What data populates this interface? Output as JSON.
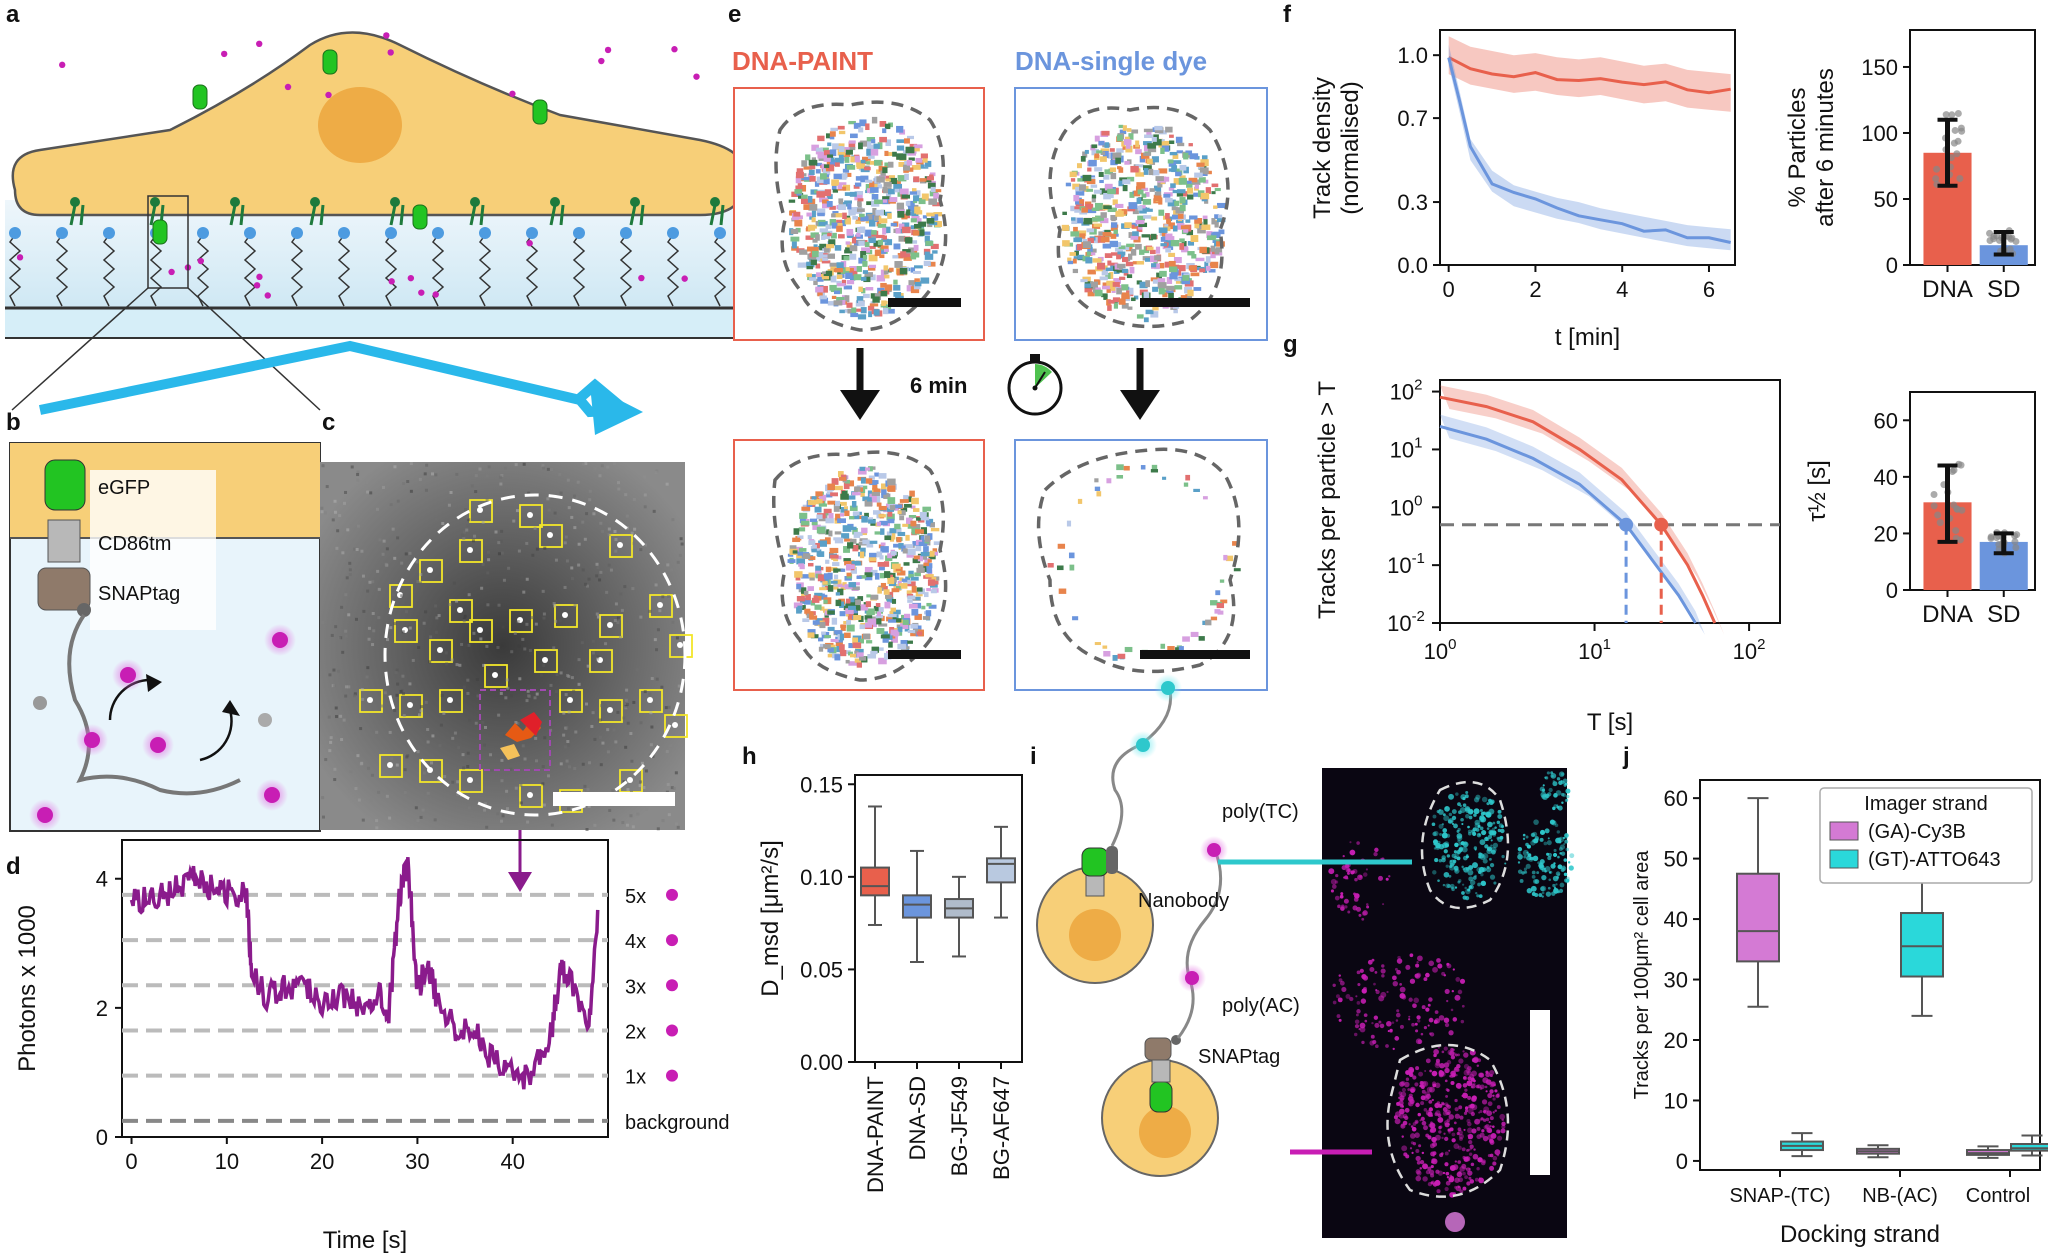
{
  "panel_labels": {
    "a": "a",
    "b": "b",
    "c": "c",
    "d": "d",
    "e": "e",
    "f": "f",
    "g": "g",
    "h": "h",
    "i": "i",
    "j": "j"
  },
  "panel_b": {
    "egfp": "eGFP",
    "cd86": "CD86tm",
    "snap": "SNAPtag"
  },
  "panel_e": {
    "paint": "DNA-PAINT",
    "single_dye": "DNA-single dye",
    "time": "6 min"
  },
  "panel_i": {
    "poly_tc": "poly(TC)",
    "nanobody": "Nanobody",
    "poly_ac": "poly(AC)",
    "snaptag": "SNAPtag"
  },
  "colors": {
    "paint": "#e8604c",
    "single_dye": "#6b95dd",
    "purple": "#8a1b8c",
    "magenta": "#c81eb4",
    "cyan": "#2ec8cc",
    "cell": "#f7cf78"
  },
  "chart_data": [
    {
      "id": "d",
      "type": "line",
      "xlabel": "Time [s]",
      "ylabel": "Photons x 1000",
      "xticks": [
        "0",
        "10",
        "20",
        "30",
        "40"
      ],
      "yticks": [
        "0",
        "2",
        "4"
      ],
      "xlim": [
        -1,
        50
      ],
      "ylim": [
        0,
        4.6
      ],
      "levels": [
        {
          "label": "5x",
          "y": 3.75
        },
        {
          "label": "4x",
          "y": 3.05
        },
        {
          "label": "3x",
          "y": 2.35
        },
        {
          "label": "2x",
          "y": 1.65
        },
        {
          "label": "1x",
          "y": 0.95
        },
        {
          "label": "background",
          "y": 0.25
        }
      ],
      "series": [
        {
          "name": "trace",
          "x": [
            0,
            2,
            4,
            6,
            8,
            10,
            12,
            12.6,
            14,
            16,
            18,
            20,
            22,
            24,
            26,
            27,
            28,
            29,
            30,
            31,
            32,
            34,
            36,
            38,
            40,
            42,
            44,
            45,
            46,
            48,
            49
          ],
          "y": [
            3.6,
            3.7,
            3.8,
            4.0,
            3.9,
            3.8,
            3.8,
            2.6,
            2.2,
            2.3,
            2.4,
            2.1,
            2.2,
            2.0,
            2.3,
            1.9,
            3.6,
            4.3,
            2.3,
            2.6,
            2.2,
            1.7,
            1.6,
            1.2,
            1.0,
            0.9,
            1.6,
            2.6,
            2.5,
            1.7,
            3.7
          ]
        }
      ]
    },
    {
      "id": "f1",
      "type": "line",
      "xlabel": "t [min]",
      "ylabel": "Track density",
      "ylabel2": "(normalised)",
      "xticks": [
        "0",
        "2",
        "4",
        "6"
      ],
      "yticks": [
        "0.0",
        "0.3",
        "0.7",
        "1.0"
      ],
      "xlim": [
        -0.2,
        6.6
      ],
      "ylim": [
        0,
        1.12
      ],
      "series": [
        {
          "name": "DNA-PAINT",
          "x": [
            0,
            0.5,
            1,
            1.5,
            2,
            2.5,
            3,
            3.5,
            4,
            4.5,
            5,
            5.5,
            6,
            6.5
          ],
          "y": [
            1.0,
            0.95,
            0.93,
            0.91,
            0.92,
            0.9,
            0.89,
            0.9,
            0.88,
            0.86,
            0.87,
            0.84,
            0.83,
            0.82
          ]
        },
        {
          "name": "DNA-single dye",
          "x": [
            0,
            0.25,
            0.5,
            1,
            1.5,
            2,
            2.5,
            3,
            3.5,
            4,
            4.5,
            5,
            5.5,
            6,
            6.5
          ],
          "y": [
            1.0,
            0.78,
            0.55,
            0.4,
            0.33,
            0.3,
            0.27,
            0.25,
            0.22,
            0.2,
            0.18,
            0.16,
            0.14,
            0.13,
            0.12
          ]
        }
      ]
    },
    {
      "id": "f2",
      "type": "bar",
      "ylabel": "% Particles",
      "ylabel2": "after 6 minutes",
      "categories": [
        "DNA",
        "SD"
      ],
      "values": [
        85,
        15
      ],
      "errors": [
        [
          60,
          110
        ],
        [
          8,
          25
        ]
      ],
      "yticks": [
        "0",
        "50",
        "100",
        "150"
      ],
      "ylim": [
        0,
        178
      ]
    },
    {
      "id": "g1",
      "type": "line",
      "xlabel": "T [s]",
      "ylabel": "Tracks per particle > T",
      "xticks": [
        "10^0",
        "10^1",
        "10^2"
      ],
      "yticks": [
        "10^-2",
        "10^-1",
        "10^0",
        "10^1",
        "10^2"
      ],
      "xlim_log": [
        0,
        2
      ],
      "ylim_log": [
        -2,
        2.2
      ],
      "threshold": 0.5,
      "series": [
        {
          "name": "DNA-PAINT",
          "x": [
            1,
            2,
            4,
            8,
            15,
            27,
            40,
            50,
            60
          ],
          "y": [
            80,
            55,
            30,
            10,
            3,
            0.5,
            0.1,
            0.03,
            0.01
          ]
        },
        {
          "name": "DNA-single dye",
          "x": [
            1,
            2,
            4,
            8,
            16,
            25,
            35,
            45
          ],
          "y": [
            25,
            15,
            7,
            2.5,
            0.5,
            0.1,
            0.03,
            0.01
          ]
        }
      ],
      "crossings": [
        16,
        27
      ]
    },
    {
      "id": "g2",
      "type": "bar",
      "ylabel": "τ½ [s]",
      "categories": [
        "DNA",
        "SD"
      ],
      "values": [
        31,
        17
      ],
      "errors": [
        [
          17,
          44
        ],
        [
          13,
          20
        ]
      ],
      "yticks": [
        "0",
        "20",
        "40",
        "60"
      ],
      "ylim": [
        0,
        70
      ]
    },
    {
      "id": "h",
      "type": "box",
      "ylabel": "D_msd [μm²/s]",
      "categories": [
        "DNA-PAINT",
        "DNA-SD",
        "BG-JF549",
        "BG-AF647"
      ],
      "boxes": [
        [
          0.074,
          0.09,
          0.095,
          0.105,
          0.138
        ],
        [
          0.054,
          0.078,
          0.085,
          0.09,
          0.114
        ],
        [
          0.057,
          0.078,
          0.083,
          0.088,
          0.1
        ],
        [
          0.078,
          0.097,
          0.107,
          0.11,
          0.127
        ]
      ],
      "yticks": [
        "0.00",
        "0.05",
        "0.10",
        "0.15"
      ],
      "ylim": [
        0,
        0.155
      ]
    },
    {
      "id": "j",
      "type": "box",
      "xlabel": "Docking strand",
      "ylabel": "Tracks per 100μm² cell area",
      "categories": [
        "SNAP-(TC)",
        "NB-(AC)",
        "Control"
      ],
      "legend_title": "Imager strand",
      "legend": [
        "(GA)-Cy3B",
        "(GT)-ATTO643"
      ],
      "boxes": [
        {
          "cat": 0,
          "s": 0,
          "v": [
            25.5,
            33,
            38,
            47.5,
            60
          ]
        },
        {
          "cat": 0,
          "s": 1,
          "v": [
            0.8,
            1.8,
            2.5,
            3.2,
            4.6
          ]
        },
        {
          "cat": 1,
          "s": 0,
          "v": [
            0.6,
            1.2,
            1.6,
            2,
            2.6
          ]
        },
        {
          "cat": 1,
          "s": 1,
          "v": [
            24,
            30.5,
            35.5,
            41,
            48
          ]
        },
        {
          "cat": 2,
          "s": 0,
          "v": [
            0.5,
            1,
            1.3,
            1.8,
            2.4
          ]
        },
        {
          "cat": 2,
          "s": 1,
          "v": [
            0.9,
            1.7,
            2.1,
            2.8,
            4.2
          ]
        }
      ],
      "yticks": [
        "0",
        "10",
        "20",
        "30",
        "40",
        "50",
        "60"
      ],
      "ylim": [
        -1.5,
        63
      ]
    }
  ]
}
